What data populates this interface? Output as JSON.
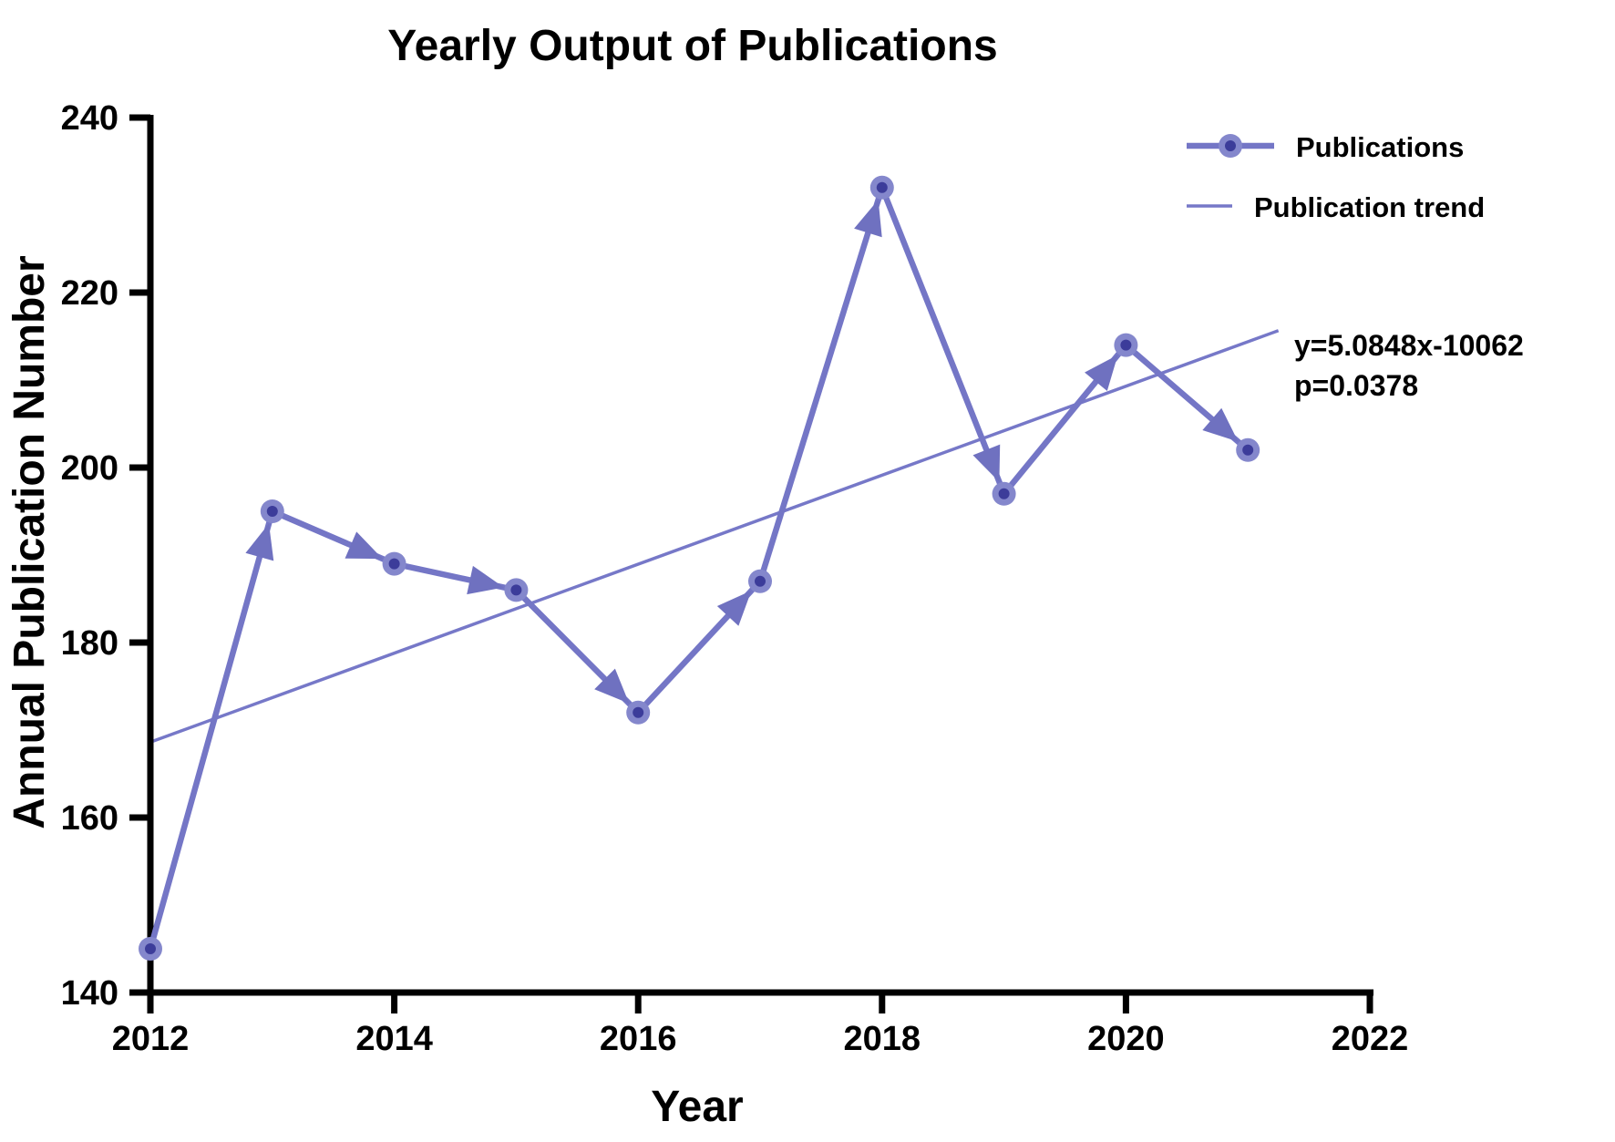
{
  "title": "Yearly Output of Publications",
  "axes": {
    "x_label": "Year",
    "y_label": "Annual Publication Number",
    "x_ticks": [
      "2012",
      "2014",
      "2016",
      "2018",
      "2020",
      "2022"
    ],
    "y_ticks": [
      "140",
      "160",
      "180",
      "200",
      "220",
      "240"
    ]
  },
  "legend": [
    {
      "label": "Publications",
      "symbol": "line-with-circle-marker"
    },
    {
      "label": "Publication trend",
      "symbol": "thin-line"
    }
  ],
  "annotation": {
    "line1": "y=5.0848x-10062",
    "line2": "p=0.0378"
  },
  "colors": {
    "series_line": "#7476c6",
    "arrow": "#6f71c0",
    "marker_fill": "#8487cc",
    "marker_core": "#3c3c9a",
    "trend_line": "#7678c8",
    "axis": "#000000",
    "text": "#000000",
    "background": "#ffffff"
  },
  "chart_data": {
    "type": "line",
    "title": "Yearly Output of Publications",
    "xlabel": "Year",
    "ylabel": "Annual Publication Number",
    "categories": [
      2012,
      2013,
      2014,
      2015,
      2016,
      2017,
      2018,
      2019,
      2020,
      2021
    ],
    "series": [
      {
        "name": "Publications",
        "values": [
          145,
          195,
          189,
          186,
          172,
          187,
          232,
          197,
          214,
          202
        ],
        "style": "thick line with circle markers and arrowheads pointing to each next point"
      },
      {
        "name": "Publication trend",
        "equation": "y=5.0848x-10062",
        "slope": 5.0848,
        "intercept": -10062,
        "p_value": 0.0378,
        "x_range": [
          2012,
          2021.25
        ],
        "style": "thin straight regression line"
      }
    ],
    "xlim": [
      2012,
      2022
    ],
    "ylim": [
      140,
      240
    ],
    "x_tick_step": 2,
    "y_tick_step": 20,
    "grid": false,
    "legend_position": "top-right"
  }
}
